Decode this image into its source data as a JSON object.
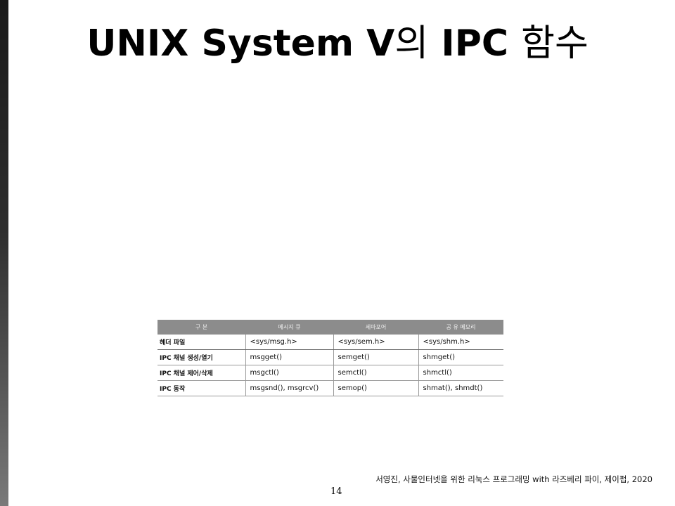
{
  "slide": {
    "title_bold_1": "UNIX System V",
    "title_light_1": "의",
    "title_bold_2": " IPC ",
    "title_light_2": "함수"
  },
  "table": {
    "headers": [
      "구 분",
      "메시지 큐",
      "세마포어",
      "공 유 메모리"
    ],
    "rows": [
      [
        "헤더 파일",
        "<sys/msg.h>",
        "<sys/sem.h>",
        "<sys/shm.h>"
      ],
      [
        "IPC 채널 생성/열기",
        "msgget()",
        "semget()",
        "shmget()"
      ],
      [
        "IPC 채널 제어/삭제",
        "msgctl()",
        "semctl()",
        "shmctl()"
      ],
      [
        "IPC 동작",
        "msgsnd(), msgrcv()",
        "semop()",
        "shmat(), shmdt()"
      ]
    ]
  },
  "footer": {
    "citation": "서영진, 사물인터넷을 위한 리눅스 프로그래밍 with 라즈베리 파이, 제이펍, 2020",
    "page_number": "14"
  }
}
